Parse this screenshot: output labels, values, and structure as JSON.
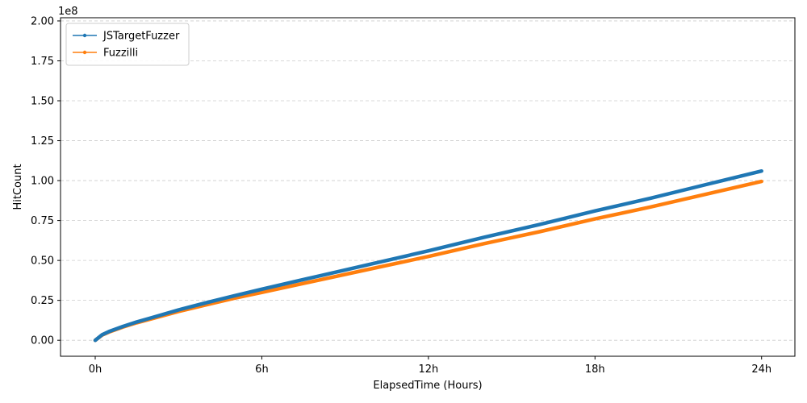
{
  "chart_data": {
    "type": "line",
    "title": "",
    "xlabel": "ElapsedTime (Hours)",
    "ylabel": "HitCount",
    "y_multiplier_label": "1e8",
    "x_ticks": [
      {
        "value": 0,
        "label": "0h"
      },
      {
        "value": 6,
        "label": "6h"
      },
      {
        "value": 12,
        "label": "12h"
      },
      {
        "value": 18,
        "label": "18h"
      },
      {
        "value": 24,
        "label": "24h"
      }
    ],
    "y_ticks": [
      {
        "value": 0.0,
        "label": "0.00"
      },
      {
        "value": 0.25,
        "label": "0.25"
      },
      {
        "value": 0.5,
        "label": "0.50"
      },
      {
        "value": 0.75,
        "label": "0.75"
      },
      {
        "value": 1.0,
        "label": "1.00"
      },
      {
        "value": 1.25,
        "label": "1.25"
      },
      {
        "value": 1.5,
        "label": "1.50"
      },
      {
        "value": 1.75,
        "label": "1.75"
      },
      {
        "value": 2.0,
        "label": "2.00"
      }
    ],
    "xlim": [
      -1.25,
      25.2
    ],
    "ylim": [
      -0.1,
      2.02
    ],
    "grid": "horizontal-dashed",
    "legend_position": "top-left",
    "series": [
      {
        "name": "JSTargetFuzzer",
        "color": "#1f77b4",
        "x": [
          0,
          0.25,
          0.5,
          1,
          1.5,
          2,
          3,
          4,
          5,
          6,
          8,
          10,
          12,
          14,
          16,
          18,
          20,
          22,
          24
        ],
        "y": [
          0,
          0.035,
          0.055,
          0.087,
          0.115,
          0.14,
          0.19,
          0.235,
          0.278,
          0.32,
          0.4,
          0.48,
          0.56,
          0.645,
          0.725,
          0.81,
          0.89,
          0.975,
          1.06
        ]
      },
      {
        "name": "Fuzzilli",
        "color": "#ff7f0e",
        "x": [
          0,
          0.25,
          0.5,
          1,
          1.5,
          2,
          3,
          4,
          5,
          6,
          8,
          10,
          12,
          14,
          16,
          18,
          20,
          22,
          24
        ],
        "y": [
          0,
          0.033,
          0.052,
          0.083,
          0.11,
          0.133,
          0.18,
          0.222,
          0.263,
          0.3,
          0.375,
          0.45,
          0.525,
          0.605,
          0.68,
          0.76,
          0.835,
          0.915,
          0.995
        ]
      }
    ]
  }
}
